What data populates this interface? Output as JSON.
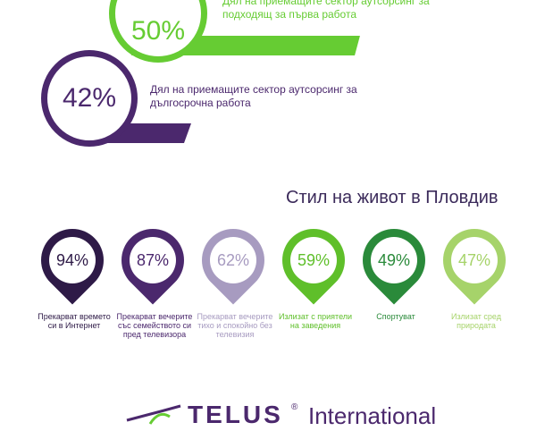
{
  "stats": [
    {
      "value": "50%",
      "text_line1": "Дял на приемащите сектор аутсорсинг за",
      "text_line2": "подходящ за първа работа",
      "color": "#66cc33"
    },
    {
      "value": "42%",
      "text_line1": "Дял на приемащите сектор аутсорсинг за",
      "text_line2": "дългосрочна работа",
      "color": "#4b286d"
    }
  ],
  "lifestyle": {
    "title": "Стил на живот в Пловдив",
    "pins": [
      {
        "value": "94%",
        "label": "Прекарват времето си в Интернет",
        "color": "#2e1a47",
        "text_color": "#2e1a47"
      },
      {
        "value": "87%",
        "label": "Прекарват вечерите със семейството си пред телевизора",
        "color": "#4b286d",
        "text_color": "#4b286d"
      },
      {
        "value": "62%",
        "label": "Прекарват вечерите тихо и спокойно без телевизия",
        "color": "#a79bc0",
        "text_color": "#a79bc0"
      },
      {
        "value": "59%",
        "label": "Излизат с приятели на заведения",
        "color": "#5fbf2a",
        "text_color": "#5fbf2a"
      },
      {
        "value": "49%",
        "label": "Спортуват",
        "color": "#2a8a3a",
        "text_color": "#2a8a3a"
      },
      {
        "value": "47%",
        "label": "Излизат сред природата",
        "color": "#a6d36a",
        "text_color": "#a6d36a"
      }
    ]
  },
  "logo": {
    "name": "TELUS",
    "reg": "®",
    "sub": "International"
  },
  "icons": {
    "logo_mark": "telus-leaf-mark"
  }
}
